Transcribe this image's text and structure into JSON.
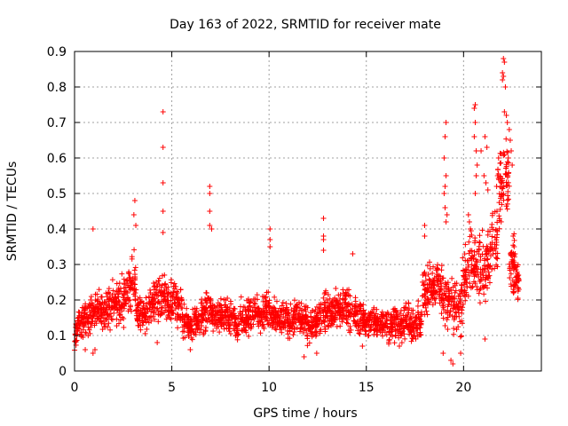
{
  "chart_data": {
    "type": "scatter",
    "title": "Day 163 of 2022, SRMTID for receiver mate",
    "xlabel": "GPS time / hours",
    "ylabel": "SRMTID / TECUs",
    "xlim": [
      0,
      24
    ],
    "ylim": [
      0,
      0.9
    ],
    "x_ticks": [
      0,
      5,
      10,
      15,
      20
    ],
    "x_tick_labels": [
      "0",
      "5",
      "10",
      "15",
      "20"
    ],
    "y_ticks": [
      0,
      0.1,
      0.2,
      0.3,
      0.4,
      0.5,
      0.6,
      0.7,
      0.8,
      0.9
    ],
    "y_tick_labels": [
      "0",
      "0.1",
      "0.2",
      "0.3",
      "0.4",
      "0.5",
      "0.6",
      "0.7",
      "0.8",
      "0.9"
    ],
    "grid": true,
    "marker": "+",
    "color": "#ff0000",
    "series": [
      {
        "name": "SRMTID",
        "segments": [
          [
            0.0,
            0.1,
            0.05
          ],
          [
            0.3,
            0.14,
            0.05
          ],
          [
            0.6,
            0.15,
            0.05
          ],
          [
            0.9,
            0.16,
            0.06
          ],
          [
            1.2,
            0.17,
            0.06
          ],
          [
            1.5,
            0.16,
            0.06
          ],
          [
            1.8,
            0.18,
            0.07
          ],
          [
            2.1,
            0.19,
            0.07
          ],
          [
            2.4,
            0.2,
            0.07
          ],
          [
            2.7,
            0.22,
            0.07
          ],
          [
            3.0,
            0.25,
            0.08
          ],
          [
            3.3,
            0.17,
            0.05
          ],
          [
            3.6,
            0.16,
            0.05
          ],
          [
            3.9,
            0.18,
            0.06
          ],
          [
            4.2,
            0.2,
            0.07
          ],
          [
            4.5,
            0.21,
            0.07
          ],
          [
            4.8,
            0.19,
            0.06
          ],
          [
            5.1,
            0.2,
            0.06
          ],
          [
            5.4,
            0.18,
            0.06
          ],
          [
            5.7,
            0.14,
            0.05
          ],
          [
            6.0,
            0.13,
            0.05
          ],
          [
            6.3,
            0.14,
            0.05
          ],
          [
            6.6,
            0.15,
            0.05
          ],
          [
            6.9,
            0.18,
            0.06
          ],
          [
            7.2,
            0.16,
            0.05
          ],
          [
            7.5,
            0.15,
            0.05
          ],
          [
            7.8,
            0.16,
            0.05
          ],
          [
            8.1,
            0.15,
            0.05
          ],
          [
            8.4,
            0.14,
            0.05
          ],
          [
            8.7,
            0.15,
            0.05
          ],
          [
            9.0,
            0.16,
            0.06
          ],
          [
            9.3,
            0.17,
            0.06
          ],
          [
            9.6,
            0.16,
            0.05
          ],
          [
            9.9,
            0.17,
            0.06
          ],
          [
            10.2,
            0.15,
            0.05
          ],
          [
            10.5,
            0.14,
            0.05
          ],
          [
            10.8,
            0.15,
            0.05
          ],
          [
            11.1,
            0.14,
            0.05
          ],
          [
            11.4,
            0.15,
            0.05
          ],
          [
            11.7,
            0.14,
            0.05
          ],
          [
            12.0,
            0.13,
            0.05
          ],
          [
            12.3,
            0.14,
            0.05
          ],
          [
            12.6,
            0.15,
            0.06
          ],
          [
            12.9,
            0.17,
            0.06
          ],
          [
            13.2,
            0.16,
            0.06
          ],
          [
            13.5,
            0.17,
            0.06
          ],
          [
            13.8,
            0.18,
            0.06
          ],
          [
            14.1,
            0.17,
            0.06
          ],
          [
            14.4,
            0.16,
            0.05
          ],
          [
            14.7,
            0.15,
            0.05
          ],
          [
            15.0,
            0.14,
            0.05
          ],
          [
            15.3,
            0.14,
            0.05
          ],
          [
            15.6,
            0.13,
            0.05
          ],
          [
            15.9,
            0.14,
            0.05
          ],
          [
            16.2,
            0.13,
            0.05
          ],
          [
            16.5,
            0.14,
            0.05
          ],
          [
            16.8,
            0.13,
            0.05
          ],
          [
            17.1,
            0.14,
            0.05
          ],
          [
            17.4,
            0.13,
            0.05
          ],
          [
            17.7,
            0.14,
            0.05
          ],
          [
            18.0,
            0.22,
            0.08
          ],
          [
            18.3,
            0.24,
            0.08
          ],
          [
            18.6,
            0.25,
            0.09
          ],
          [
            18.9,
            0.22,
            0.08
          ],
          [
            19.2,
            0.2,
            0.09
          ],
          [
            19.5,
            0.19,
            0.09
          ],
          [
            19.8,
            0.18,
            0.08
          ],
          [
            20.1,
            0.27,
            0.1
          ],
          [
            20.4,
            0.3,
            0.1
          ],
          [
            20.7,
            0.3,
            0.1
          ],
          [
            21.0,
            0.28,
            0.1
          ],
          [
            21.3,
            0.32,
            0.1
          ],
          [
            21.6,
            0.36,
            0.11
          ],
          [
            21.9,
            0.5,
            0.14
          ],
          [
            22.2,
            0.55,
            0.13
          ],
          [
            22.5,
            0.3,
            0.08
          ],
          [
            22.7,
            0.26,
            0.06
          ]
        ],
        "spikes": [
          [
            0.95,
            0.4
          ],
          [
            3.1,
            0.48
          ],
          [
            3.05,
            0.44
          ],
          [
            3.15,
            0.41
          ],
          [
            4.55,
            0.73
          ],
          [
            4.55,
            0.63
          ],
          [
            4.55,
            0.53
          ],
          [
            4.55,
            0.45
          ],
          [
            4.55,
            0.39
          ],
          [
            6.95,
            0.52
          ],
          [
            6.95,
            0.5
          ],
          [
            6.95,
            0.45
          ],
          [
            6.95,
            0.41
          ],
          [
            7.05,
            0.4
          ],
          [
            10.05,
            0.4
          ],
          [
            10.05,
            0.37
          ],
          [
            10.05,
            0.35
          ],
          [
            12.8,
            0.43
          ],
          [
            12.8,
            0.38
          ],
          [
            12.8,
            0.37
          ],
          [
            12.8,
            0.34
          ],
          [
            14.3,
            0.33
          ],
          [
            18.0,
            0.41
          ],
          [
            18.0,
            0.38
          ],
          [
            19.1,
            0.7
          ],
          [
            19.05,
            0.66
          ],
          [
            19.0,
            0.6
          ],
          [
            19.1,
            0.55
          ],
          [
            19.05,
            0.52
          ],
          [
            19.0,
            0.5
          ],
          [
            19.05,
            0.46
          ],
          [
            19.15,
            0.44
          ],
          [
            19.1,
            0.42
          ],
          [
            20.6,
            0.75
          ],
          [
            20.55,
            0.74
          ],
          [
            20.6,
            0.7
          ],
          [
            20.55,
            0.66
          ],
          [
            20.65,
            0.62
          ],
          [
            20.7,
            0.58
          ],
          [
            20.65,
            0.55
          ],
          [
            20.6,
            0.5
          ],
          [
            20.25,
            0.44
          ],
          [
            20.3,
            0.42
          ],
          [
            20.35,
            0.4
          ],
          [
            20.9,
            0.62
          ],
          [
            21.1,
            0.66
          ],
          [
            21.2,
            0.63
          ],
          [
            21.05,
            0.55
          ],
          [
            21.15,
            0.53
          ],
          [
            21.25,
            0.51
          ],
          [
            22.05,
            0.88
          ],
          [
            22.1,
            0.87
          ],
          [
            22.0,
            0.84
          ],
          [
            22.05,
            0.83
          ],
          [
            22.0,
            0.82
          ],
          [
            22.15,
            0.8
          ],
          [
            22.1,
            0.73
          ],
          [
            22.2,
            0.72
          ],
          [
            22.25,
            0.7
          ],
          [
            22.35,
            0.68
          ],
          [
            22.4,
            0.65
          ],
          [
            22.45,
            0.62
          ],
          [
            22.3,
            0.6
          ],
          [
            22.5,
            0.58
          ],
          [
            21.8,
            0.6
          ],
          [
            21.75,
            0.55
          ],
          [
            21.7,
            0.52
          ],
          [
            22.55,
            0.38
          ],
          [
            22.6,
            0.35
          ],
          [
            22.65,
            0.33
          ]
        ],
        "lows": [
          [
            0.55,
            0.06
          ],
          [
            0.95,
            0.05
          ],
          [
            1.05,
            0.06
          ],
          [
            4.25,
            0.08
          ],
          [
            5.95,
            0.06
          ],
          [
            11.8,
            0.04
          ],
          [
            12.45,
            0.05
          ],
          [
            14.8,
            0.07
          ],
          [
            16.7,
            0.07
          ],
          [
            18.95,
            0.05
          ],
          [
            19.35,
            0.03
          ],
          [
            19.45,
            0.02
          ],
          [
            19.85,
            0.05
          ],
          [
            21.1,
            0.09
          ]
        ]
      }
    ]
  }
}
